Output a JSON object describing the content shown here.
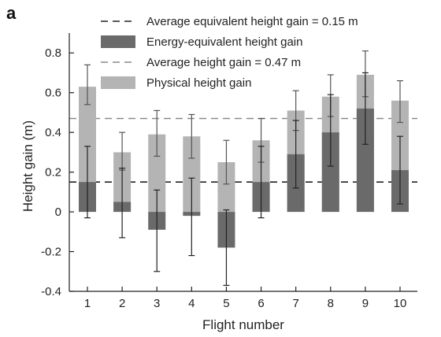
{
  "panel_label": "a",
  "chart_data": {
    "type": "bar",
    "xlabel": "Flight number",
    "ylabel": "Height gain (m)",
    "ylim": [
      -0.4,
      0.9
    ],
    "yticks": [
      "0.8",
      "0.6",
      "0.4",
      "0.2",
      "0",
      "-0.2",
      "-0.4"
    ],
    "categories": [
      "1",
      "2",
      "3",
      "4",
      "5",
      "6",
      "7",
      "8",
      "9",
      "10"
    ],
    "series": [
      {
        "name": "Physical height gain",
        "color": "#b4b4b4",
        "values": [
          0.63,
          0.3,
          0.39,
          0.38,
          0.25,
          0.36,
          0.51,
          0.58,
          0.69,
          0.56
        ],
        "err_low": [
          0.54,
          0.21,
          0.28,
          0.27,
          0.14,
          0.25,
          0.41,
          0.48,
          0.58,
          0.45
        ],
        "err_high": [
          0.74,
          0.4,
          0.51,
          0.49,
          0.36,
          0.47,
          0.61,
          0.69,
          0.81,
          0.66
        ]
      },
      {
        "name": "Energy-equivalent height gain",
        "color": "#6a6a6a",
        "values": [
          0.15,
          0.05,
          -0.09,
          -0.02,
          -0.18,
          0.15,
          0.29,
          0.4,
          0.52,
          0.21
        ],
        "err_low": [
          -0.03,
          -0.13,
          -0.3,
          -0.22,
          -0.37,
          -0.03,
          0.12,
          0.23,
          0.34,
          0.04
        ],
        "err_high": [
          0.33,
          0.22,
          0.11,
          0.17,
          0.01,
          0.33,
          0.46,
          0.59,
          0.7,
          0.38
        ]
      }
    ],
    "reference_lines": [
      {
        "name": "Average equivalent height gain = 0.15 m",
        "value": 0.15,
        "color": "#222222",
        "dash": "long"
      },
      {
        "name": "Average height gain = 0.47 m",
        "value": 0.47,
        "color": "#8a8a8a",
        "dash": "long"
      }
    ],
    "legend": {
      "placement": "top-right",
      "entries": [
        {
          "label": "Average equivalent height gain = 0.15 m",
          "kind": "dashed-line",
          "color": "#222222"
        },
        {
          "label": "Energy-equivalent height gain",
          "kind": "box",
          "color": "#6a6a6a"
        },
        {
          "label": "Average height gain = 0.47 m",
          "kind": "dashed-line",
          "color": "#8a8a8a"
        },
        {
          "label": "Physical height gain",
          "kind": "box",
          "color": "#b4b4b4"
        }
      ]
    },
    "grid": false
  }
}
